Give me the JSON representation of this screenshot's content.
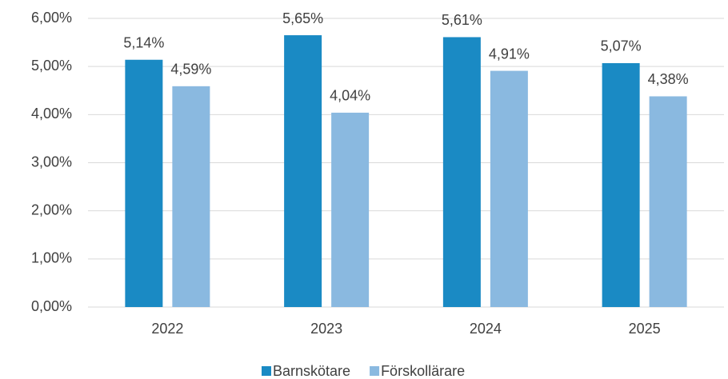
{
  "chart_data": {
    "type": "bar",
    "categories": [
      "2022",
      "2023",
      "2024",
      "2025"
    ],
    "series": [
      {
        "name": "Barnskötare",
        "color": "#1a8ac4",
        "values": [
          5.14,
          5.65,
          5.61,
          5.07
        ],
        "value_labels": [
          "5,14%",
          "5,65%",
          "5,61%",
          "5,07%"
        ]
      },
      {
        "name": "Förskollärare",
        "color": "#8ab9e0",
        "values": [
          4.59,
          4.04,
          4.91,
          4.38
        ],
        "value_labels": [
          "4,59%",
          "4,04%",
          "4,91%",
          "4,38%"
        ]
      }
    ],
    "ylim": [
      0,
      6
    ],
    "yticks": [
      {
        "value": 0,
        "label": "0,00%"
      },
      {
        "value": 1,
        "label": "1,00%"
      },
      {
        "value": 2,
        "label": "2,00%"
      },
      {
        "value": 3,
        "label": "3,00%"
      },
      {
        "value": 4,
        "label": "4,00%"
      },
      {
        "value": 5,
        "label": "5,00%"
      },
      {
        "value": 6,
        "label": "6,00%"
      }
    ],
    "grid": true,
    "legend": "bottom"
  }
}
